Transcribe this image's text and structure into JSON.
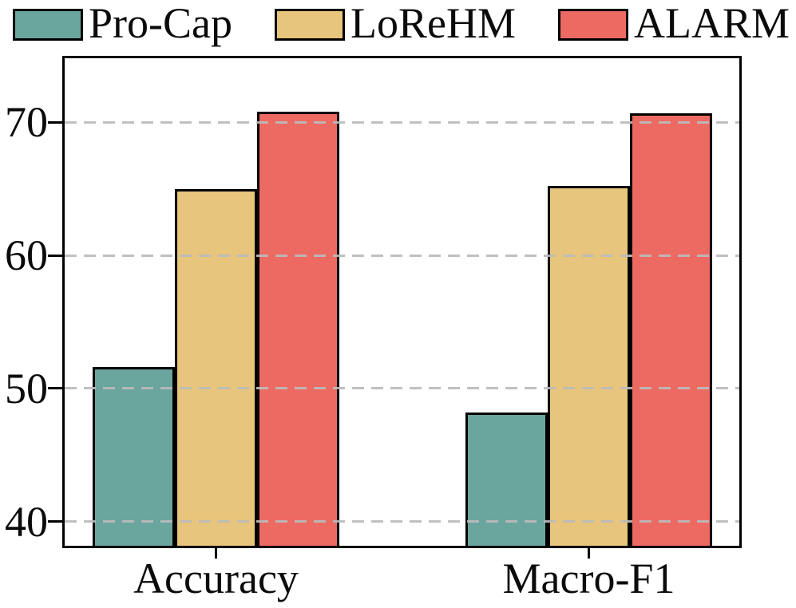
{
  "chart_data": {
    "type": "bar",
    "title": "",
    "categories": [
      "Accuracy",
      "Macro-F1"
    ],
    "series": [
      {
        "name": "Pro-Cap",
        "color": "#6AA59E",
        "values": [
          51.6,
          48.2
        ]
      },
      {
        "name": "LoReHM",
        "color": "#E8C57C",
        "values": [
          65.0,
          65.2
        ]
      },
      {
        "name": "ALARM",
        "color": "#ED6A62",
        "values": [
          70.8,
          70.7
        ]
      }
    ],
    "yticks": [
      40,
      50,
      60,
      70
    ],
    "ylim": [
      38,
      75
    ],
    "xlabel": "",
    "ylabel": "",
    "grid_style": "horizontal dashed, drawn above bars",
    "gridline_color": "#bbbbbb",
    "bar_edge_color": "#000000",
    "legend_position": "top"
  }
}
